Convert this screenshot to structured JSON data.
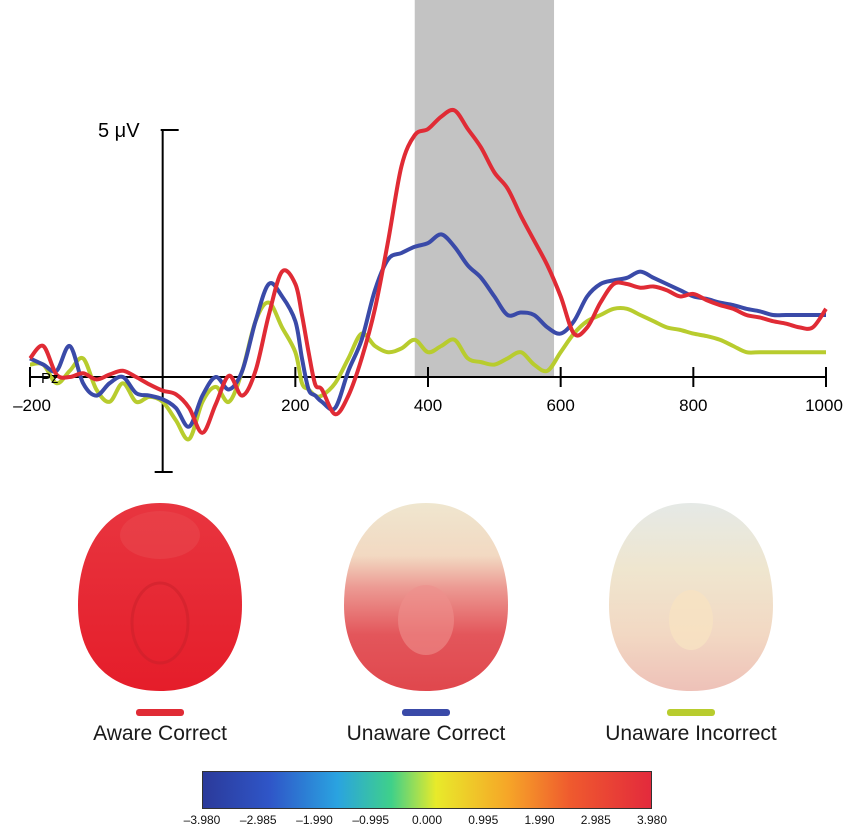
{
  "chart_data": {
    "type": "line",
    "title": "",
    "xlabel": "",
    "ylabel": "",
    "electrode": "Pz",
    "scale_bar_label": "5 μV",
    "xlim": [
      -200,
      1000
    ],
    "x_ticks": [
      -200,
      0,
      200,
      400,
      600,
      800,
      1000
    ],
    "x_tick_labels": [
      "–200",
      "",
      "200",
      "400",
      "600",
      "800",
      "1000"
    ],
    "highlight_window": [
      380,
      590
    ],
    "highlight_color": "#c3c3c3",
    "ylim": [
      -5,
      22
    ],
    "series": [
      {
        "name": "Aware Correct",
        "color": "#e02b35",
        "x": [
          -200,
          -180,
          -160,
          -140,
          -120,
          -100,
          -80,
          -60,
          -40,
          -20,
          0,
          20,
          40,
          60,
          80,
          100,
          120,
          140,
          160,
          180,
          200,
          210,
          220,
          230,
          240,
          260,
          280,
          300,
          320,
          340,
          360,
          380,
          400,
          420,
          440,
          460,
          480,
          500,
          520,
          540,
          560,
          580,
          600,
          620,
          640,
          660,
          680,
          700,
          720,
          740,
          760,
          780,
          800,
          820,
          840,
          860,
          880,
          900,
          920,
          940,
          960,
          980,
          1000
        ],
        "values": [
          1.5,
          2.5,
          0.2,
          0.0,
          0.3,
          -0.2,
          0.2,
          0.5,
          0.0,
          -0.6,
          -1.1,
          -1.4,
          -2.5,
          -4.5,
          -2.2,
          0.1,
          -1.5,
          0.5,
          5.0,
          8.5,
          7.5,
          5.0,
          2.0,
          -0.6,
          -1.0,
          -3.0,
          -1.5,
          1.5,
          5.5,
          11.0,
          17.0,
          19.5,
          20.0,
          21.0,
          21.5,
          20.0,
          18.5,
          16.5,
          15.2,
          13.0,
          11.0,
          9.0,
          6.5,
          3.5,
          4.0,
          6.0,
          7.5,
          7.5,
          7.2,
          7.3,
          7.0,
          6.5,
          6.7,
          6.2,
          5.8,
          5.5,
          5.0,
          4.8,
          4.5,
          4.3,
          4.0,
          4.0,
          5.5
        ]
      },
      {
        "name": "Unaware Correct",
        "color": "#3a4aa8",
        "x": [
          -200,
          -180,
          -160,
          -140,
          -120,
          -100,
          -80,
          -60,
          -40,
          -20,
          0,
          20,
          40,
          60,
          80,
          100,
          120,
          140,
          160,
          180,
          200,
          210,
          220,
          230,
          240,
          260,
          280,
          300,
          320,
          340,
          360,
          380,
          400,
          420,
          440,
          460,
          480,
          500,
          520,
          540,
          560,
          580,
          600,
          620,
          640,
          660,
          680,
          700,
          720,
          740,
          760,
          780,
          800,
          820,
          840,
          860,
          880,
          900,
          920,
          940,
          960,
          980,
          1000
        ],
        "values": [
          1.5,
          1.0,
          0.5,
          2.5,
          -0.5,
          -1.5,
          -0.5,
          0.0,
          -1.3,
          -1.5,
          -1.8,
          -2.5,
          -4.0,
          -1.5,
          0.0,
          -1.0,
          0.5,
          4.5,
          7.5,
          6.5,
          4.5,
          1.5,
          -1.0,
          -1.5,
          -2.0,
          -2.5,
          0.5,
          3.0,
          7.0,
          9.5,
          10.0,
          10.5,
          10.8,
          11.5,
          10.5,
          9.0,
          8.0,
          6.5,
          5.0,
          5.2,
          5.0,
          4.0,
          3.5,
          4.5,
          6.5,
          7.5,
          7.8,
          8.0,
          8.5,
          8.0,
          7.5,
          7.0,
          6.5,
          6.3,
          6.0,
          5.8,
          5.5,
          5.3,
          5.0,
          5.0,
          5.0,
          5.0,
          5.0
        ]
      },
      {
        "name": "Unaware Incorrect",
        "color": "#b8cc2e",
        "x": [
          -200,
          -180,
          -160,
          -140,
          -120,
          -100,
          -80,
          -60,
          -40,
          -20,
          0,
          20,
          40,
          60,
          80,
          100,
          120,
          140,
          160,
          180,
          200,
          210,
          220,
          230,
          240,
          260,
          280,
          300,
          320,
          340,
          360,
          380,
          400,
          420,
          440,
          460,
          480,
          500,
          520,
          540,
          560,
          580,
          600,
          620,
          640,
          660,
          680,
          700,
          720,
          740,
          760,
          780,
          800,
          820,
          840,
          860,
          880,
          900,
          920,
          940,
          960,
          980,
          1000
        ],
        "values": [
          1.0,
          1.0,
          -0.5,
          0.5,
          1.5,
          -1.0,
          -2.0,
          -0.5,
          -2.0,
          -1.6,
          -2.0,
          -3.5,
          -5.0,
          -2.0,
          -0.8,
          -2.0,
          0.5,
          4.5,
          6.0,
          4.0,
          2.0,
          -0.5,
          -1.0,
          -1.5,
          -1.5,
          -0.5,
          1.5,
          3.5,
          2.5,
          2.0,
          2.3,
          3.0,
          2.0,
          2.5,
          3.0,
          1.5,
          1.2,
          1.0,
          1.5,
          2.0,
          1.0,
          0.5,
          2.0,
          3.5,
          4.5,
          5.0,
          5.5,
          5.5,
          5.0,
          4.5,
          4.0,
          3.8,
          3.5,
          3.3,
          3.0,
          2.5,
          2.0,
          2.0,
          2.0,
          2.0,
          2.0,
          2.0,
          2.0
        ]
      }
    ]
  },
  "topomaps": [
    {
      "label": "Aware Correct",
      "swatch_color": "#e02b35"
    },
    {
      "label": "Unaware Correct",
      "swatch_color": "#3a4aa8"
    },
    {
      "label": "Unaware Incorrect",
      "swatch_color": "#b8cc2e"
    }
  ],
  "colorbar": {
    "tick_labels": [
      "–3.980",
      "–2.985",
      "–1.990",
      "–0.995",
      "0.000",
      "0.995",
      "1.990",
      "2.985",
      "3.980"
    ]
  }
}
